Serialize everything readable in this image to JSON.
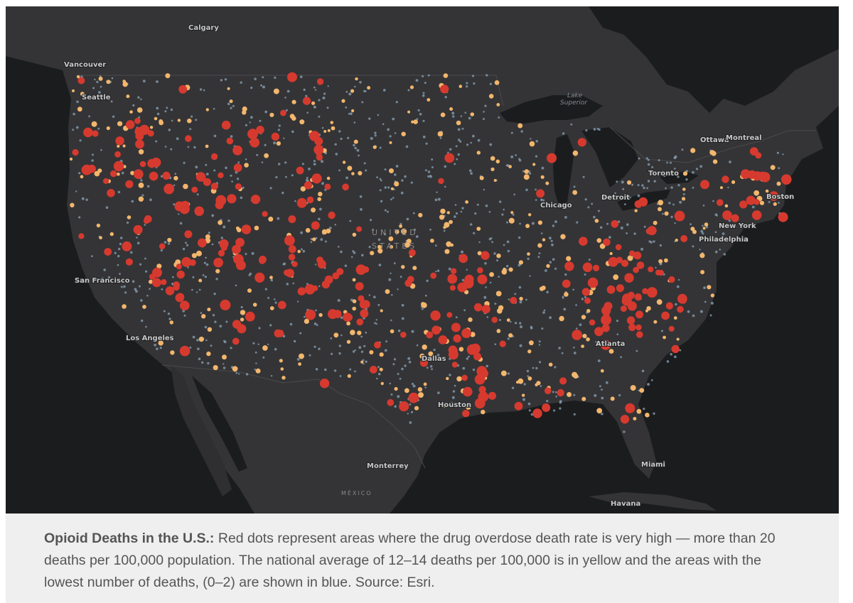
{
  "map": {
    "country_label_lines": [
      "UNITED",
      "STATES"
    ],
    "mexico_label": "MÉXICO",
    "water_label_lines": [
      "Lake",
      "Superior"
    ],
    "places": [
      {
        "key": "calgary",
        "name": "Calgary"
      },
      {
        "key": "vancouver",
        "name": "Vancouver"
      },
      {
        "key": "seattle",
        "name": "Seattle"
      },
      {
        "key": "ottawa",
        "name": "Ottawa"
      },
      {
        "key": "montreal",
        "name": "Montreal"
      },
      {
        "key": "toronto",
        "name": "Toronto"
      },
      {
        "key": "detroit",
        "name": "Detroit"
      },
      {
        "key": "chicago",
        "name": "Chicago"
      },
      {
        "key": "new-york",
        "name": "New York"
      },
      {
        "key": "boston",
        "name": "Boston"
      },
      {
        "key": "philadelphia",
        "name": "Philadelphia"
      },
      {
        "key": "san-francisco",
        "name": "San Francisco"
      },
      {
        "key": "los-angeles",
        "name": "Los Angeles"
      },
      {
        "key": "dallas",
        "name": "Dallas"
      },
      {
        "key": "houston",
        "name": "Houston"
      },
      {
        "key": "atlanta",
        "name": "Atlanta"
      },
      {
        "key": "miami",
        "name": "Miami"
      },
      {
        "key": "monterrey",
        "name": "Monterrey"
      },
      {
        "key": "havana",
        "name": "Havana"
      }
    ],
    "legend_colors": {
      "very_high": "#d63a2f",
      "national_average": "#f2b66d",
      "lowest": "#8aa3b8"
    }
  },
  "caption": {
    "title": "Opioid Deaths in the U.S.:",
    "body": " Red dots represent areas where the drug overdose death rate is very high — more than 20 deaths per 100,000 population. The national average of 12–14 deaths per 100,000 is in yellow and the areas with the lowest number of deaths, (0–2) are shown in blue. Source: Esri."
  }
}
